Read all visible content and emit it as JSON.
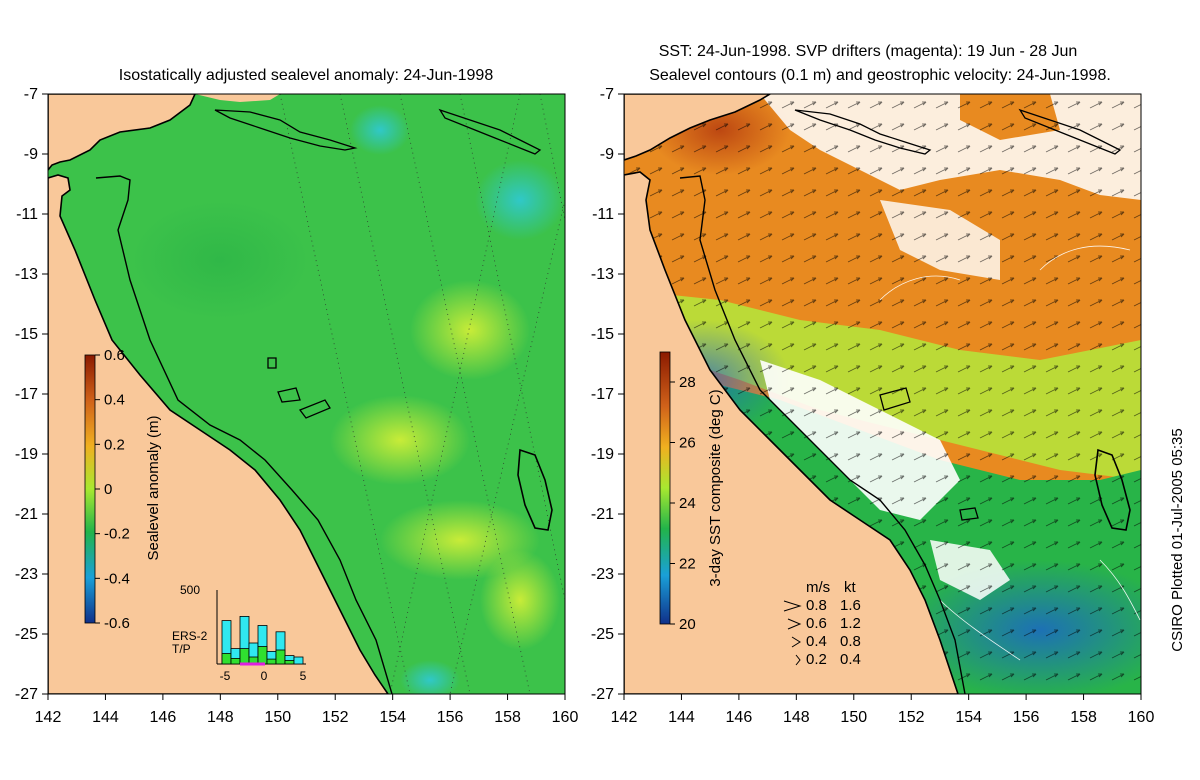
{
  "left_panel": {
    "title": "Isostatically adjusted sealevel anomaly: 24-Jun-1998",
    "colorbar": {
      "label": "Sealevel anomaly (m)",
      "ticks": [
        "0.6",
        "0.4",
        "0.2",
        "0",
        "-0.2",
        "-0.4",
        "-0.6"
      ],
      "colors": [
        "#8b1a00",
        "#d0621a",
        "#f0b020",
        "#a8e830",
        "#22b44a",
        "#1aa0d8",
        "#10308a"
      ]
    },
    "inset": {
      "ymax_label": "500",
      "x_ticks": [
        "-5",
        "0",
        "5"
      ],
      "legend": [
        {
          "name": "ERS-2",
          "color": "#30e8f0"
        },
        {
          "name": "T/P",
          "color": "#30e030"
        }
      ],
      "ers2_counts": [
        0.62,
        0.22,
        0.68,
        0.3,
        0.55,
        0.18,
        0.46,
        0.12,
        0.1
      ],
      "tp_counts": [
        0.15,
        0.08,
        0.22,
        0.1,
        0.25,
        0.07,
        0.2,
        0.05,
        0.0
      ]
    }
  },
  "right_panel": {
    "title_line1": "SST: 24-Jun-1998. SVP drifters (magenta): 19 Jun - 28 Jun",
    "title_line2": "Sealevel contours (0.1 m) and geostrophic velocity: 24-Jun-1998.",
    "colorbar": {
      "label": "3-day SST composite (deg C)",
      "ticks": [
        "28",
        "26",
        "24",
        "22",
        "20"
      ],
      "colors": [
        "#8b1a00",
        "#d0621a",
        "#f0b020",
        "#a8e830",
        "#22b44a",
        "#1aa0d8",
        "#10308a"
      ]
    },
    "velocity_legend": {
      "header_ms": "m/s",
      "header_kt": "kt",
      "rows": [
        {
          "ms": "0.8",
          "kt": "1.6"
        },
        {
          "ms": "0.6",
          "kt": "1.2"
        },
        {
          "ms": "0.4",
          "kt": "0.8"
        },
        {
          "ms": "0.2",
          "kt": "0.4"
        }
      ]
    }
  },
  "y_axis_ticks": [
    "-7",
    "-9",
    "-11",
    "-13",
    "-15",
    "-17",
    "-19",
    "-21",
    "-23",
    "-25",
    "-27"
  ],
  "x_axis_ticks": [
    "142",
    "144",
    "146",
    "148",
    "150",
    "152",
    "154",
    "156",
    "158",
    "160"
  ],
  "credit": "CSIRO Plotted 01-Jul-2005 05:35",
  "colors": {
    "land": "#f9c89a",
    "ocean_left": "#3cc24a",
    "ocean_right": "#e88a20",
    "shelf_line": "#000000"
  }
}
